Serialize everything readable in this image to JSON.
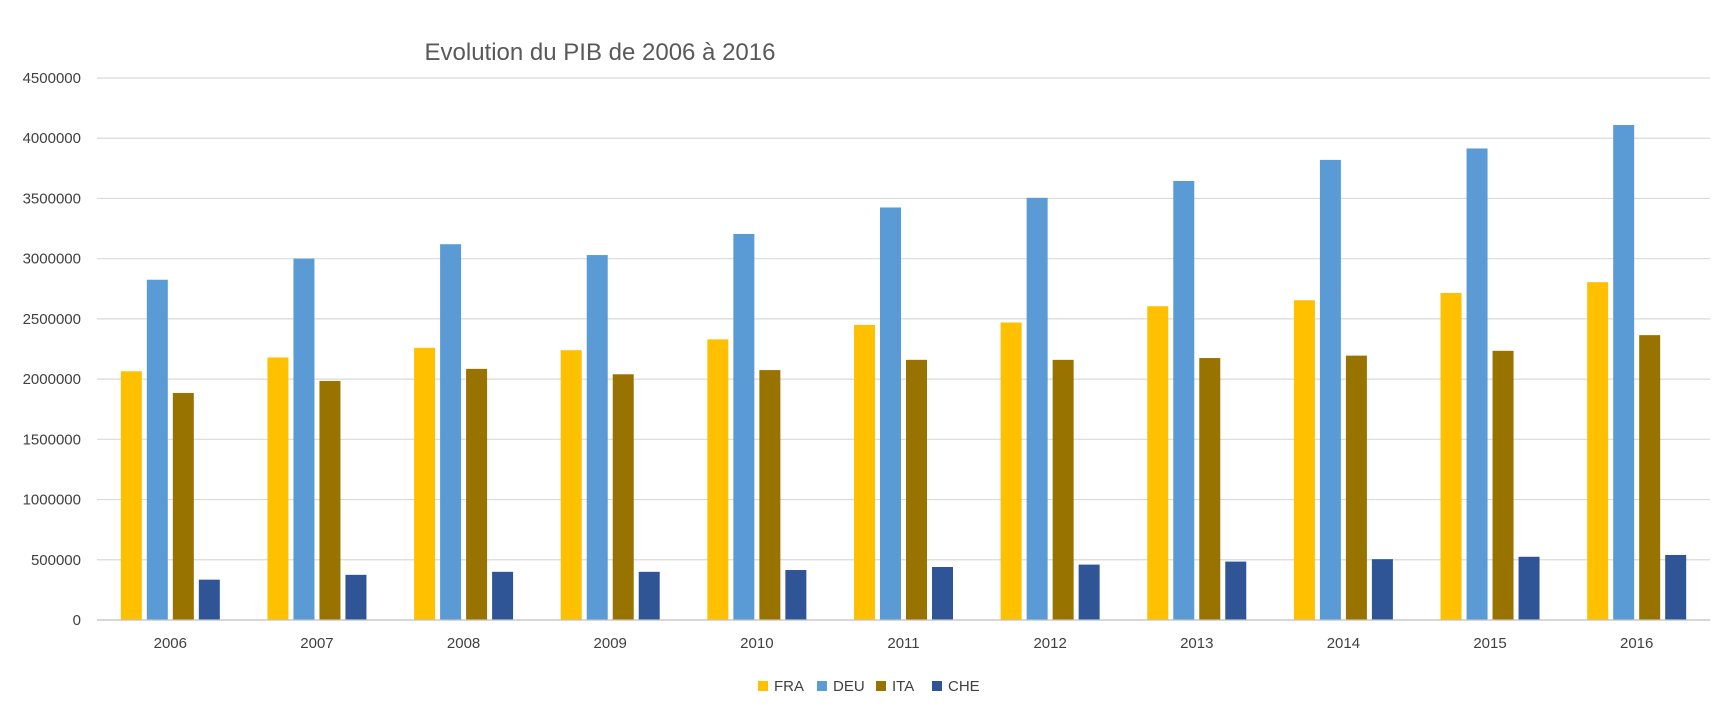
{
  "chart_data": {
    "type": "bar",
    "title": "Evolution du PIB de 2006 à 2016",
    "xlabel": "",
    "ylabel": "",
    "categories": [
      "2006",
      "2007",
      "2008",
      "2009",
      "2010",
      "2011",
      "2012",
      "2013",
      "2014",
      "2015",
      "2016"
    ],
    "y_ticks": [
      "0",
      "500000",
      "1000000",
      "1500000",
      "2000000",
      "2500000",
      "3000000",
      "3500000",
      "4000000",
      "4500000"
    ],
    "ylim": [
      0,
      4500000
    ],
    "grid": true,
    "legend_position": "bottom",
    "series": [
      {
        "name": "FRA",
        "color": "#FFC000",
        "values": [
          2065000,
          2180000,
          2260000,
          2240000,
          2330000,
          2450000,
          2470000,
          2605000,
          2655000,
          2715000,
          2805000
        ]
      },
      {
        "name": "DEU",
        "color": "#5B9BD5",
        "values": [
          2825000,
          3000000,
          3120000,
          3030000,
          3205000,
          3425000,
          3505000,
          3645000,
          3820000,
          3915000,
          4110000
        ]
      },
      {
        "name": "ITA",
        "color": "#997300",
        "values": [
          1885000,
          1985000,
          2085000,
          2040000,
          2075000,
          2160000,
          2160000,
          2175000,
          2195000,
          2235000,
          2365000
        ]
      },
      {
        "name": "CHE",
        "color": "#2F5597",
        "values": [
          335000,
          375000,
          400000,
          400000,
          415000,
          440000,
          460000,
          485000,
          505000,
          525000,
          540000
        ]
      }
    ]
  }
}
